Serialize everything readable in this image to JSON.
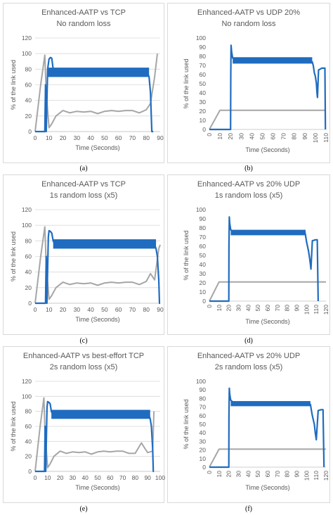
{
  "colors": {
    "main": "#1f6cc0",
    "secondary": "#a6a6a6"
  },
  "chart_data": [
    {
      "type": "line",
      "caption": "(a)",
      "title": [
        "Enhanced-AATP vs TCP",
        "No random loss"
      ],
      "xlabel": "Time (Seconds)",
      "ylabel": "% of the link used",
      "xlim": [
        0,
        90
      ],
      "ylim": [
        0,
        120
      ],
      "xticks": [
        0,
        10,
        20,
        30,
        40,
        50,
        60,
        70,
        80,
        90
      ],
      "yticks": [
        0,
        20,
        40,
        60,
        80,
        100,
        120
      ],
      "grid": true,
      "series": [
        {
          "color": "main",
          "band": [
            70,
            82
          ],
          "x": [
            0,
            7,
            7.5,
            8,
            9,
            10,
            11,
            12,
            13,
            13.5,
            14,
            15,
            80,
            81,
            82,
            83,
            84,
            84.5,
            85
          ],
          "y": [
            0,
            0,
            60,
            0,
            80,
            93,
            95,
            94,
            80,
            76,
            76,
            76,
            76,
            75,
            70,
            50,
            0,
            0,
            0
          ]
        },
        {
          "color": "secondary",
          "x": [
            0,
            4,
            7,
            8,
            10,
            12,
            15,
            20,
            25,
            30,
            35,
            40,
            45,
            50,
            55,
            60,
            65,
            70,
            75,
            80,
            83,
            86,
            88
          ],
          "y": [
            0,
            60,
            98,
            50,
            5,
            10,
            20,
            27,
            24,
            26,
            25,
            26,
            23,
            26,
            27,
            26,
            27,
            27,
            24,
            28,
            36,
            70,
            100
          ]
        }
      ]
    },
    {
      "type": "line",
      "caption": "(b)",
      "title": [
        "Enhanced-AATP vs UDP 20%",
        "No random loss"
      ],
      "xlabel": "Time (Seconds)",
      "ylabel": "% of the link used",
      "xlim": [
        0,
        110
      ],
      "ylim": [
        0,
        100
      ],
      "xticks": [
        0,
        10,
        20,
        30,
        40,
        50,
        60,
        70,
        80,
        90,
        100,
        110
      ],
      "yticks": [
        0,
        10,
        20,
        30,
        40,
        50,
        60,
        70,
        80,
        90,
        100
      ],
      "grid": false,
      "series": [
        {
          "color": "main",
          "band": [
            72,
            79
          ],
          "x": [
            0,
            19.5,
            20,
            20.2,
            20.5,
            21,
            22,
            25,
            90,
            95,
            97,
            98,
            99,
            100,
            101,
            101.5,
            102,
            103,
            106,
            108,
            109,
            109.5
          ],
          "y": [
            0,
            0,
            0,
            60,
            92,
            85,
            78,
            76,
            76,
            75,
            74,
            70,
            62,
            58,
            50,
            40,
            35,
            65,
            67,
            67,
            67,
            0
          ]
        },
        {
          "color": "secondary",
          "x": [
            0,
            10,
            100,
            110
          ],
          "y": [
            0,
            21,
            21,
            21
          ]
        }
      ]
    },
    {
      "type": "line",
      "caption": "(c)",
      "title": [
        "Enhanced-AATP vs TCP",
        "1s random loss (x5)"
      ],
      "xlabel": "Time (Seconds)",
      "ylabel": "% of the link used",
      "xlim": [
        0,
        90
      ],
      "ylim": [
        0,
        120
      ],
      "xticks": [
        0,
        10,
        20,
        30,
        40,
        50,
        60,
        70,
        80,
        90
      ],
      "yticks": [
        0,
        20,
        40,
        60,
        80,
        100,
        120
      ],
      "grid": true,
      "series": [
        {
          "color": "main",
          "band": [
            70,
            82
          ],
          "x": [
            0,
            7.5,
            8,
            8.5,
            9.5,
            10,
            11,
            12,
            13,
            14,
            15,
            85,
            86,
            87,
            88,
            89,
            89.5,
            90
          ],
          "y": [
            0,
            0,
            60,
            0,
            85,
            93,
            92,
            90,
            80,
            76,
            76,
            76,
            75,
            70,
            60,
            30,
            0,
            0
          ]
        },
        {
          "color": "secondary",
          "x": [
            0,
            4,
            7,
            8,
            10,
            12,
            15,
            20,
            25,
            30,
            35,
            40,
            45,
            50,
            55,
            60,
            65,
            70,
            75,
            80,
            83,
            86,
            89,
            90
          ],
          "y": [
            0,
            60,
            98,
            50,
            5,
            10,
            20,
            27,
            24,
            26,
            25,
            26,
            23,
            26,
            27,
            26,
            27,
            27,
            24,
            28,
            38,
            30,
            70,
            75
          ]
        }
      ]
    },
    {
      "type": "line",
      "caption": "(d)",
      "title": [
        "Enhanced-AATP vs 20% UDP",
        "1s random loss (x5)"
      ],
      "xlabel": "Time (Seconds)",
      "ylabel": "% of the link used",
      "xlim": [
        0,
        120
      ],
      "ylim": [
        0,
        100
      ],
      "xticks": [
        0,
        10,
        20,
        30,
        40,
        50,
        60,
        70,
        80,
        90,
        100,
        110,
        120
      ],
      "yticks": [
        0,
        10,
        20,
        30,
        40,
        50,
        60,
        70,
        80,
        90,
        100
      ],
      "grid": false,
      "series": [
        {
          "color": "main",
          "band": [
            72,
            78
          ],
          "x": [
            0,
            19.5,
            20,
            20.2,
            20.5,
            21,
            22,
            25,
            90,
            96,
            98,
            99,
            100,
            101,
            102,
            103,
            104,
            104.5,
            106,
            109,
            111,
            112
          ],
          "y": [
            0,
            0,
            0,
            60,
            92,
            85,
            78,
            75,
            75,
            76,
            77,
            72,
            65,
            60,
            55,
            48,
            40,
            35,
            66,
            67,
            67,
            0
          ]
        },
        {
          "color": "secondary",
          "x": [
            0,
            10,
            112,
            120
          ],
          "y": [
            0,
            21,
            21,
            21
          ]
        }
      ]
    },
    {
      "type": "line",
      "caption": "(e)",
      "title": [
        "Enhanced-AATP vs best-effort TCP",
        "2s random loss (x5)"
      ],
      "xlabel": "Time (Seconds)",
      "ylabel": "% of the link used",
      "xlim": [
        0,
        100
      ],
      "ylim": [
        0,
        120
      ],
      "xticks": [
        0,
        10,
        20,
        30,
        40,
        50,
        60,
        70,
        80,
        90,
        100
      ],
      "yticks": [
        0,
        20,
        40,
        60,
        80,
        100,
        120
      ],
      "grid": true,
      "series": [
        {
          "color": "main",
          "band": [
            70,
            82
          ],
          "x": [
            0,
            7.5,
            8,
            8.5,
            9.5,
            10,
            11,
            12,
            13,
            14,
            15,
            90,
            91,
            92,
            93,
            94,
            94.5,
            95
          ],
          "y": [
            0,
            0,
            60,
            0,
            85,
            93,
            92,
            90,
            80,
            76,
            76,
            76,
            75,
            70,
            60,
            30,
            0,
            0
          ]
        },
        {
          "color": "secondary",
          "x": [
            0,
            4,
            7,
            8,
            10,
            12,
            15,
            20,
            25,
            30,
            35,
            40,
            45,
            50,
            55,
            60,
            65,
            70,
            75,
            80,
            85,
            88,
            90,
            94,
            95
          ],
          "y": [
            0,
            60,
            98,
            50,
            5,
            10,
            20,
            27,
            24,
            26,
            25,
            26,
            23,
            26,
            27,
            26,
            27,
            27,
            24,
            24,
            38,
            30,
            25,
            27,
            80
          ]
        }
      ]
    },
    {
      "type": "line",
      "caption": "(f)",
      "title": [
        "Enhanced-AATP vs 20% UDP",
        "2s random loss (x5)"
      ],
      "xlabel": "Time (Seconds)",
      "ylabel": "% of the link used",
      "xlim": [
        0,
        120
      ],
      "ylim": [
        0,
        100
      ],
      "xticks": [
        0,
        10,
        20,
        30,
        40,
        50,
        60,
        70,
        80,
        90,
        100,
        110,
        120
      ],
      "yticks": [
        0,
        10,
        20,
        30,
        40,
        50,
        60,
        70,
        80,
        90,
        100
      ],
      "grid": false,
      "series": [
        {
          "color": "main",
          "band": [
            71,
            77
          ],
          "x": [
            0,
            19.5,
            20,
            20.2,
            20.5,
            21,
            22,
            25,
            95,
            100,
            104,
            105,
            106,
            107,
            108,
            109,
            110,
            112,
            115,
            117,
            118
          ],
          "y": [
            0,
            0,
            0,
            60,
            92,
            85,
            78,
            75,
            74,
            75,
            73,
            66,
            60,
            55,
            50,
            40,
            32,
            66,
            67,
            67,
            0
          ]
        },
        {
          "color": "secondary",
          "x": [
            0,
            10,
            117,
            120
          ],
          "y": [
            0,
            21,
            21,
            21
          ]
        }
      ]
    }
  ]
}
